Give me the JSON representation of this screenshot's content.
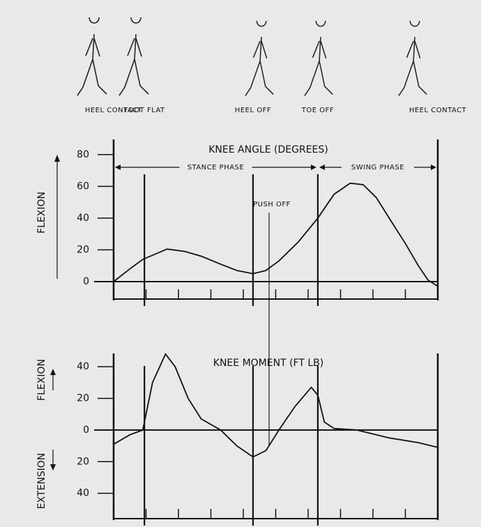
{
  "gait_events": [
    {
      "label": "HEEL CONTACT",
      "x": 0
    },
    {
      "label": "FOOT FLAT",
      "x": 9.5
    },
    {
      "label": "HEEL OFF",
      "x": 43
    },
    {
      "label": "TOE OFF",
      "x": 63
    },
    {
      "label": "HEEL CONTACT",
      "x": 100
    }
  ],
  "chart_data": [
    {
      "type": "line",
      "title": "KNEE ANGLE (DEGREES)",
      "ylabel": "FLEXION",
      "x": [
        0,
        5,
        9,
        16.5,
        22,
        27,
        33,
        38,
        43,
        47,
        51,
        57,
        63,
        68,
        73,
        77,
        81,
        85,
        90,
        94,
        97,
        100
      ],
      "values": [
        0,
        8,
        14,
        20.5,
        19,
        16,
        11,
        7,
        5,
        7,
        13,
        25,
        40,
        55,
        62,
        61,
        53,
        40,
        24,
        10,
        1,
        -3
      ],
      "color": "#111111",
      "xlim": [
        0,
        100
      ],
      "xticks": [
        0,
        10,
        20,
        30,
        40,
        50,
        60,
        70,
        80,
        90,
        100
      ],
      "ylim": [
        -11,
        90
      ],
      "yticks": [
        0,
        20,
        40,
        60,
        80
      ],
      "phases": [
        {
          "label": "STANCE PHASE",
          "start": 0,
          "end": 63
        },
        {
          "label": "SWING PHASE",
          "start": 63,
          "end": 100
        }
      ],
      "annotation": "PUSH OFF"
    },
    {
      "type": "line",
      "title": "KNEE MOMENT (FT LB)",
      "ylabel": "FLEXION",
      "ylabel2": "EXTENSION",
      "x": [
        0,
        5,
        9,
        12,
        16,
        19,
        23,
        27,
        33,
        38,
        43,
        47,
        51,
        56,
        61,
        63,
        65,
        68,
        75,
        85,
        94,
        100
      ],
      "values": [
        -9,
        -3,
        0,
        30,
        48,
        40,
        20,
        7,
        0,
        -10,
        -17,
        -13,
        0,
        15,
        27,
        22,
        5,
        1,
        0,
        -5,
        -8,
        -11
      ],
      "color": "#111111",
      "xlim": [
        0,
        100
      ],
      "xticks": [
        0,
        10,
        20,
        30,
        40,
        50,
        60,
        70,
        80,
        90,
        100
      ],
      "ylim": [
        -56,
        55
      ],
      "yticks": [
        {
          "value": -40,
          "label": "40"
        },
        {
          "value": -20,
          "label": "20"
        },
        0,
        20,
        40
      ]
    }
  ]
}
